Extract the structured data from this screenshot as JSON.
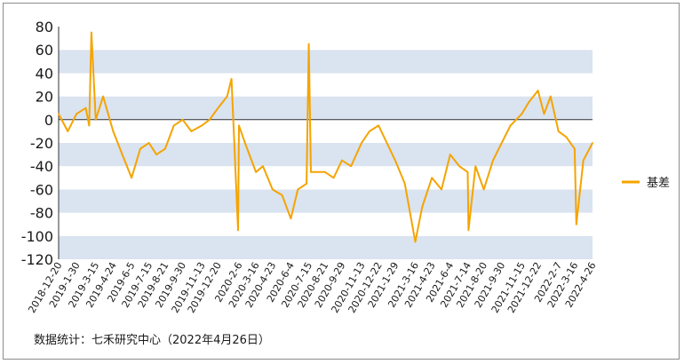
{
  "chart_data": {
    "type": "line",
    "title": "",
    "xlabel": "",
    "ylabel": "",
    "ylim": [
      -120,
      80
    ],
    "yticks": [
      80,
      60,
      40,
      20,
      0,
      -20,
      -40,
      -60,
      -80,
      -100,
      -120
    ],
    "grid": "alternating horizontal bands",
    "legend_position": "right",
    "x_tick_labels": [
      "2018-12-20",
      "2019-1-30",
      "2019-3-15",
      "2019-4-24",
      "2019-6-5",
      "2019-7-15",
      "2019-8-21",
      "2019-9-30",
      "2019-11-13",
      "2019-12-20",
      "2020-2-6",
      "2020-3-16",
      "2020-4-23",
      "2020-6-4",
      "2020-7-15",
      "2020-8-21",
      "2020-9-29",
      "2020-11-13",
      "2020-12-22",
      "2021-1-29",
      "2021-3-16",
      "2021-4-23",
      "2021-6-4",
      "2021-7-14",
      "2021-8-20",
      "2021-9-30",
      "2021-11-15",
      "2021-12-22",
      "2022-2-7",
      "2022-3-16",
      "2022-4-26"
    ],
    "series": [
      {
        "name": "基差",
        "color": "#f5a400",
        "x": [
          "2018-12-20",
          "2019-1-10",
          "2019-1-30",
          "2019-2-20",
          "2019-2-28",
          "2019-3-5",
          "2019-3-15",
          "2019-4-1",
          "2019-4-24",
          "2019-5-15",
          "2019-6-5",
          "2019-6-25",
          "2019-7-15",
          "2019-8-1",
          "2019-8-21",
          "2019-9-10",
          "2019-9-30",
          "2019-10-20",
          "2019-11-13",
          "2019-12-1",
          "2019-12-20",
          "2020-1-10",
          "2020-1-20",
          "2020-2-4",
          "2020-2-6",
          "2020-2-20",
          "2020-3-16",
          "2020-4-1",
          "2020-4-23",
          "2020-5-15",
          "2020-6-4",
          "2020-6-20",
          "2020-7-10",
          "2020-7-15",
          "2020-7-20",
          "2020-8-21",
          "2020-9-10",
          "2020-9-29",
          "2020-10-20",
          "2020-11-13",
          "2020-12-1",
          "2020-12-22",
          "2021-1-10",
          "2021-1-29",
          "2021-2-20",
          "2021-3-16",
          "2021-4-1",
          "2021-4-23",
          "2021-5-15",
          "2021-6-4",
          "2021-6-25",
          "2021-7-14",
          "2021-7-16",
          "2021-8-1",
          "2021-8-20",
          "2021-9-10",
          "2021-9-30",
          "2021-10-20",
          "2021-11-15",
          "2021-12-1",
          "2021-12-22",
          "2022-1-5",
          "2022-1-20",
          "2022-2-7",
          "2022-2-25",
          "2022-3-16",
          "2022-3-20",
          "2022-4-5",
          "2022-4-26"
        ],
        "values": [
          5,
          -10,
          5,
          10,
          -5,
          75,
          0,
          20,
          -10,
          -30,
          -50,
          -25,
          -20,
          -30,
          -25,
          -5,
          0,
          -10,
          -5,
          0,
          10,
          20,
          35,
          -95,
          -5,
          -20,
          -45,
          -40,
          -60,
          -65,
          -85,
          -60,
          -55,
          65,
          -45,
          -45,
          -50,
          -35,
          -40,
          -20,
          -10,
          -5,
          -20,
          -35,
          -55,
          -105,
          -75,
          -50,
          -60,
          -30,
          -40,
          -45,
          -95,
          -40,
          -60,
          -35,
          -20,
          -5,
          5,
          15,
          25,
          5,
          20,
          -10,
          -15,
          -25,
          -90,
          -35,
          -20
        ]
      }
    ]
  },
  "source_note": "数据统计：七禾研究中心（2022年4月26日）"
}
